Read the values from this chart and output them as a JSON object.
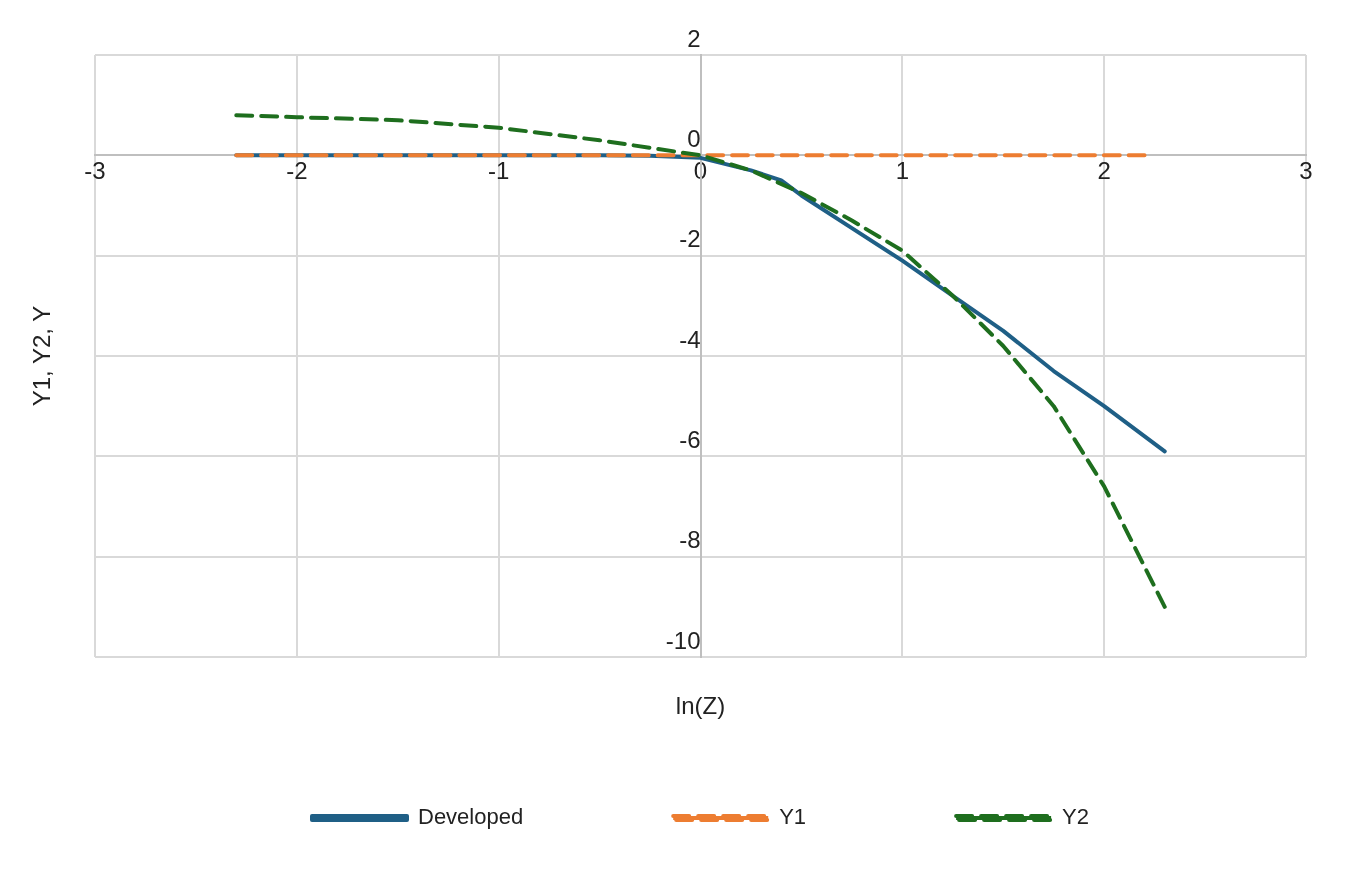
{
  "chart_data": {
    "type": "line",
    "xlabel": "ln(Z)",
    "ylabel": "Y1, Y2, Y",
    "xlim": [
      -3,
      3
    ],
    "xticks": [
      -3,
      -2,
      -1,
      0,
      1,
      2,
      3
    ],
    "ylim": [
      -10,
      2
    ],
    "yticks": [
      -10,
      -8,
      -6,
      -4,
      -2,
      0,
      2
    ],
    "grid": true,
    "legend": "bottom",
    "marker": "none",
    "series": [
      {
        "name": "Developed",
        "color": "#1f5f86",
        "line_style": "solid",
        "x": [
          -2.3,
          -2,
          -1.5,
          -1,
          -0.5,
          -0.25,
          0,
          0.25,
          0.4,
          0.5,
          0.75,
          1,
          1.25,
          1.5,
          1.75,
          2,
          2.3
        ],
        "values": [
          0,
          0,
          0,
          0,
          0,
          -0.01,
          -0.05,
          -0.3,
          -0.5,
          -0.8,
          -1.45,
          -2.1,
          -2.8,
          -3.5,
          -4.3,
          -5.0,
          -5.9
        ]
      },
      {
        "name": "Y1",
        "color": "#ed7d31",
        "line_style": "dashed",
        "x": [
          -2.3,
          -1,
          0,
          1,
          2.2
        ],
        "values": [
          0,
          0,
          0,
          0,
          0
        ]
      },
      {
        "name": "Y2",
        "color": "#1e6e1e",
        "line_style": "dashed",
        "x": [
          -2.3,
          -2,
          -1.5,
          -1,
          -0.5,
          0,
          0.25,
          0.5,
          0.75,
          1,
          1.25,
          1.5,
          1.75,
          2,
          2.2,
          2.3
        ],
        "values": [
          0.8,
          0.76,
          0.7,
          0.55,
          0.3,
          0,
          -0.3,
          -0.75,
          -1.3,
          -1.9,
          -2.8,
          -3.8,
          -5.0,
          -6.6,
          -8.2,
          -9.0
        ]
      }
    ]
  }
}
